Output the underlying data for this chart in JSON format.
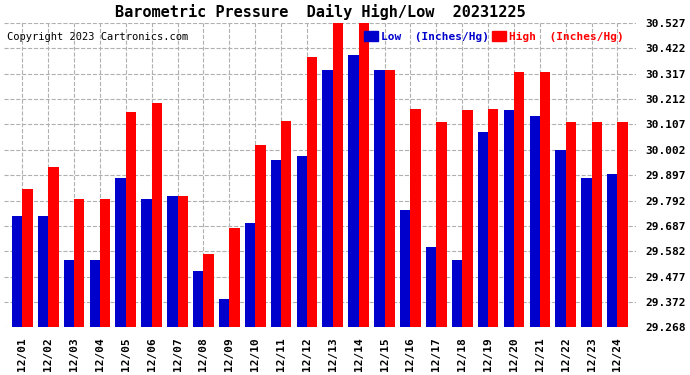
{
  "title": "Barometric Pressure  Daily High/Low  20231225",
  "copyright": "Copyright 2023 Cartronics.com",
  "legend_low": "Low  (Inches/Hg)",
  "legend_high": "High  (Inches/Hg)",
  "dates": [
    "12/01",
    "12/02",
    "12/03",
    "12/04",
    "12/05",
    "12/06",
    "12/07",
    "12/08",
    "12/09",
    "12/10",
    "12/11",
    "12/12",
    "12/13",
    "12/14",
    "12/15",
    "12/16",
    "12/17",
    "12/18",
    "12/19",
    "12/20",
    "12/21",
    "12/22",
    "12/23",
    "12/24"
  ],
  "high_values": [
    29.84,
    29.93,
    29.8,
    29.8,
    30.16,
    30.195,
    29.81,
    29.57,
    29.68,
    30.02,
    30.12,
    30.385,
    30.527,
    30.527,
    30.33,
    30.17,
    30.115,
    30.165,
    30.17,
    30.322,
    30.322,
    30.115,
    30.115,
    30.115
  ],
  "low_values": [
    29.73,
    29.73,
    29.545,
    29.545,
    29.885,
    29.8,
    29.81,
    29.5,
    29.385,
    29.7,
    29.96,
    29.975,
    30.33,
    30.395,
    30.33,
    29.755,
    29.6,
    29.545,
    30.075,
    30.165,
    30.14,
    30.0,
    29.885,
    29.9
  ],
  "ylim_min": 29.268,
  "ylim_max": 30.527,
  "yticks": [
    29.268,
    29.372,
    29.477,
    29.582,
    29.687,
    29.792,
    29.897,
    30.002,
    30.107,
    30.212,
    30.317,
    30.422,
    30.527
  ],
  "bar_color_high": "#ff0000",
  "bar_color_low": "#0000cc",
  "background_color": "#ffffff",
  "grid_color": "#b0b0b0",
  "title_color": "#000000",
  "copyright_color": "#000000",
  "legend_low_color": "#0000cc",
  "legend_high_color": "#ff0000",
  "title_fontsize": 11,
  "tick_fontsize": 8,
  "copyright_fontsize": 7.5,
  "legend_fontsize": 8
}
